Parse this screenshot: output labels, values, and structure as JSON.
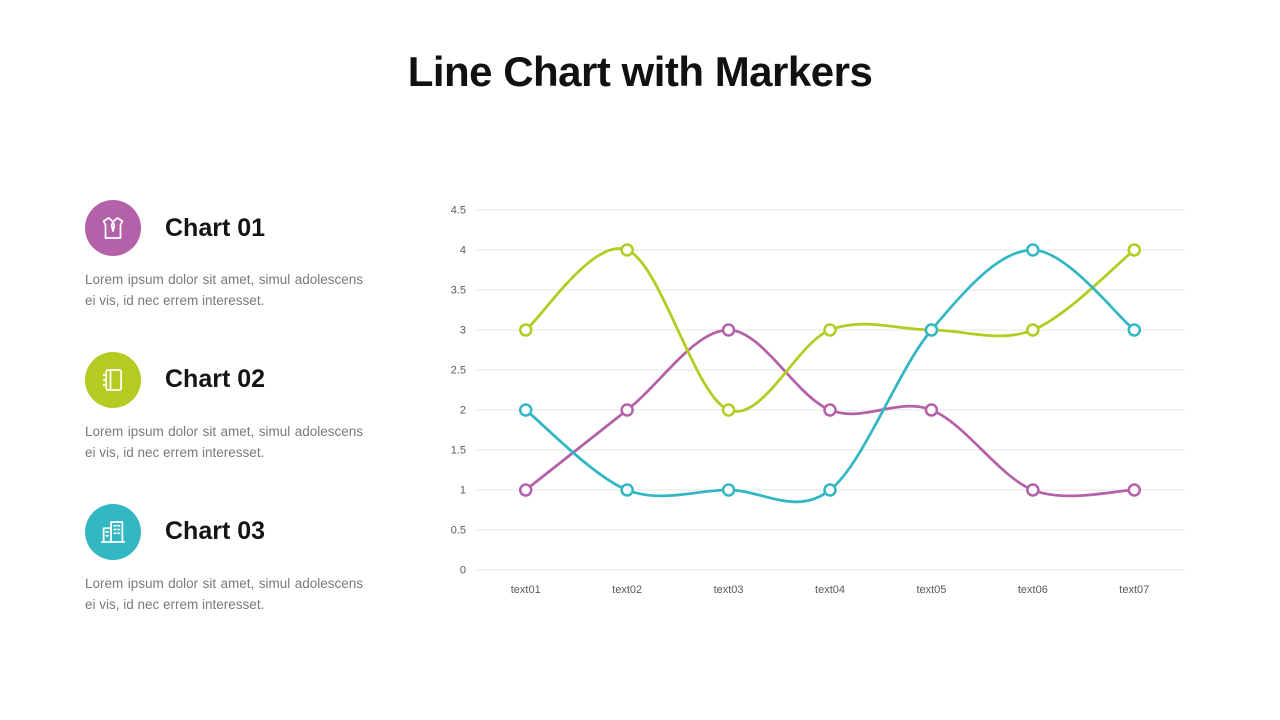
{
  "page": {
    "title": "Line Chart with Markers",
    "background": "#ffffff"
  },
  "sidebar": {
    "items": [
      {
        "label": "Chart 01",
        "description": "Lorem ipsum dolor sit amet, simul adolescens ei vis, id nec errem interesset.",
        "icon": "shirt-icon",
        "color": "#b361a8"
      },
      {
        "label": "Chart 02",
        "description": "Lorem ipsum dolor sit amet, simul adolescens ei vis, id nec errem interesset.",
        "icon": "notebook-icon",
        "color": "#b4cb21"
      },
      {
        "label": "Chart 03",
        "description": "Lorem ipsum dolor sit amet, simul adolescens ei vis, id nec errem interesset.",
        "icon": "buildings-icon",
        "color": "#32b7c3"
      }
    ]
  },
  "chart_data": {
    "type": "line",
    "title": "",
    "xlabel": "",
    "ylabel": "",
    "categories": [
      "text01",
      "text02",
      "text03",
      "text04",
      "text05",
      "text06",
      "text07"
    ],
    "series": [
      {
        "name": "Chart 01",
        "color": "#b361a8",
        "values": [
          1,
          2,
          3,
          2,
          2,
          1,
          1
        ]
      },
      {
        "name": "Chart 02",
        "color": "#b4cb21",
        "values": [
          3,
          4,
          2,
          3,
          3,
          3,
          4
        ]
      },
      {
        "name": "Chart 03",
        "color": "#32b7c3",
        "values": [
          2,
          1,
          1,
          1,
          3,
          4,
          3
        ]
      }
    ],
    "ylim": [
      0,
      4.5
    ],
    "yticks": [
      0,
      0.5,
      1,
      1.5,
      2,
      2.5,
      3,
      3.5,
      4,
      4.5
    ],
    "grid": true,
    "legend": "none",
    "marker": "circle-open",
    "line_style": "smooth",
    "gridline_color": "#e4e4e4",
    "tick_label_color": "#595959"
  }
}
